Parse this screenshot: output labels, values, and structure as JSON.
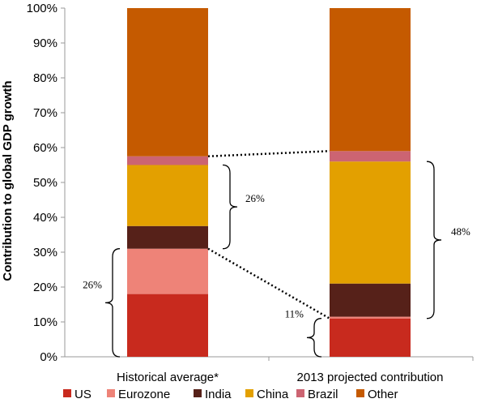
{
  "chart_data": {
    "type": "bar",
    "stacked": true,
    "ylabel": "Contribution to global GDP growth",
    "ylim": [
      0,
      100
    ],
    "yticks": [
      "0%",
      "10%",
      "20%",
      "30%",
      "40%",
      "50%",
      "60%",
      "70%",
      "80%",
      "90%",
      "100%"
    ],
    "categories": [
      "Historical average*",
      "2013 projected contribution"
    ],
    "series": [
      {
        "name": "US",
        "color": "#c82a1e",
        "values": [
          18,
          11
        ]
      },
      {
        "name": "Eurozone",
        "color": "#ee8378",
        "values": [
          13,
          0.5
        ]
      },
      {
        "name": "India",
        "color": "#562119",
        "values": [
          6.5,
          9.5
        ]
      },
      {
        "name": "China",
        "color": "#e3a000",
        "values": [
          17.5,
          35
        ]
      },
      {
        "name": "Brazil",
        "color": "#cc6472",
        "values": [
          2.5,
          3
        ]
      },
      {
        "name": "Other",
        "color": "#c55a00",
        "values": [
          42.5,
          41
        ]
      }
    ],
    "annotations": [
      "26%",
      "26%",
      "48%",
      "11%"
    ],
    "legend_position": "bottom"
  }
}
